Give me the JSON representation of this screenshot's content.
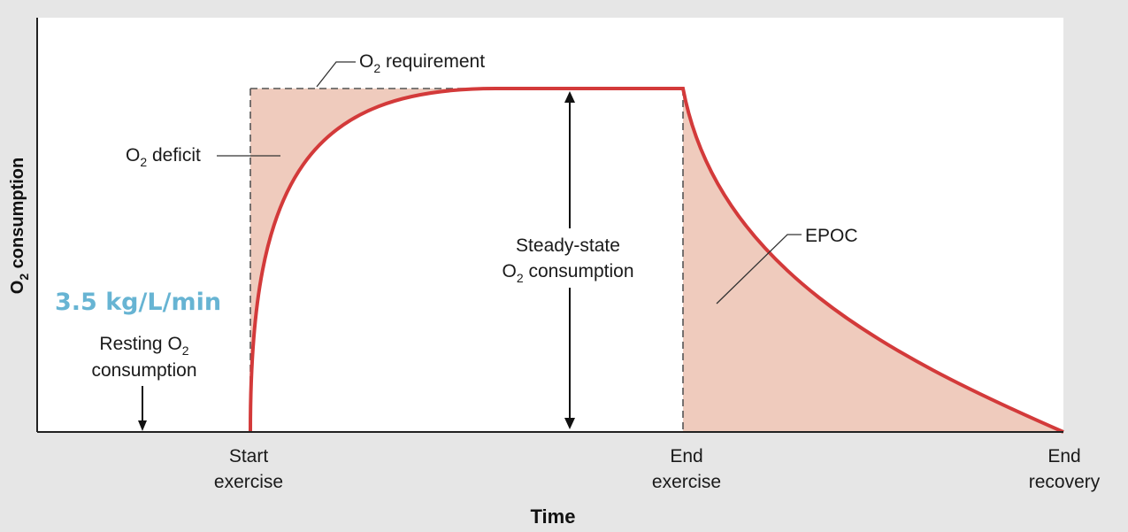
{
  "axes": {
    "x_label": "Time",
    "y_label_main": "O",
    "y_label_sub": "2",
    "y_label_rest": " consumption",
    "x_ticks": [
      {
        "line1": "Start",
        "line2": "exercise"
      },
      {
        "line1": "End",
        "line2": "exercise"
      },
      {
        "line1": "End",
        "line2": "recovery"
      }
    ]
  },
  "labels": {
    "o2_requirement": {
      "pre": "O",
      "sub": "2",
      "post": " requirement"
    },
    "o2_deficit": {
      "pre": "O",
      "sub": "2",
      "post": " deficit"
    },
    "steady_state_line1": "Steady-state",
    "steady_state_line2": {
      "pre": "O",
      "sub": "2",
      "post": " consumption"
    },
    "epoc": "EPOC",
    "resting_line1": {
      "pre": "Resting O",
      "sub": "2"
    },
    "resting_line2": "consumption"
  },
  "handwritten_note": "3.5 kg/L/min",
  "colors": {
    "curve": "#d33a3a",
    "shaded_area": "#efcbbd",
    "plot_background": "#ffffff",
    "page_background": "#e6e6e6",
    "note": "#67b4d3"
  }
}
